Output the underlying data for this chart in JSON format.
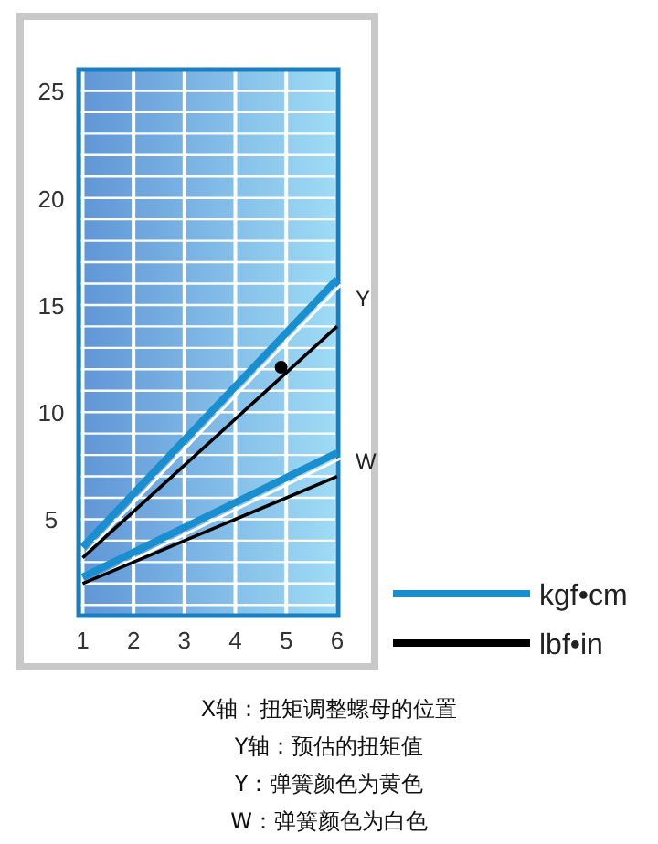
{
  "chart_data": {
    "type": "line",
    "xlim": [
      0.92,
      6.02
    ],
    "ylim": [
      0.5,
      26
    ],
    "xticks": [
      1,
      2,
      3,
      4,
      5,
      6
    ],
    "yticks": [
      {
        "value": 1,
        "label": null
      },
      {
        "value": 2,
        "label": null
      },
      {
        "value": 3,
        "label": null
      },
      {
        "value": 4,
        "label": null
      },
      5,
      {
        "value": 6,
        "label": null
      },
      {
        "value": 7,
        "label": null
      },
      {
        "value": 8,
        "label": null
      },
      {
        "value": 9,
        "label": null
      },
      10,
      {
        "value": 11,
        "label": null
      },
      {
        "value": 12,
        "label": null
      },
      {
        "value": 13,
        "label": null
      },
      {
        "value": 14,
        "label": null
      },
      15,
      {
        "value": 16,
        "label": null
      },
      {
        "value": 17,
        "label": null
      },
      {
        "value": 18,
        "label": null
      },
      {
        "value": 19,
        "label": null
      },
      20,
      {
        "value": 21,
        "label": null
      },
      {
        "value": 22,
        "label": null
      },
      {
        "value": 23,
        "label": null
      },
      {
        "value": 24,
        "label": null
      },
      25,
      {
        "value": 26,
        "label": null
      }
    ],
    "grid": true,
    "legend": "bottom right",
    "marker": "none",
    "series": [
      {
        "name": "kgf•cm",
        "color": "#1a8fd0",
        "x": [
          1,
          6
        ],
        "values": [
          3.7,
          16.2
        ]
      },
      {
        "name": "lbf•in",
        "color": "#000000",
        "x": [
          1,
          6
        ],
        "values": [
          3.2,
          14.0
        ]
      },
      {
        "color": "#1a8fd0",
        "x": [
          1,
          6
        ],
        "values": [
          2.3,
          8.1
        ]
      },
      {
        "color": "#000000",
        "x": [
          1,
          6
        ],
        "values": [
          2.0,
          7.0
        ]
      },
      {
        "type": "scatter",
        "marker": "circle",
        "color": "#000000",
        "x": [
          4.9
        ],
        "values": [
          12.1
        ]
      }
    ],
    "annotations": [
      {
        "text": "Y",
        "x": 6,
        "y": 15.4
      },
      {
        "text": "W",
        "x": 6,
        "y": 7.8
      },
      "X轴：扭矩调整螺母的位置",
      "Y轴：预估的扭矩值",
      "Y：弹簧颜色为黄色",
      "W：弹簧颜色为白色"
    ]
  }
}
